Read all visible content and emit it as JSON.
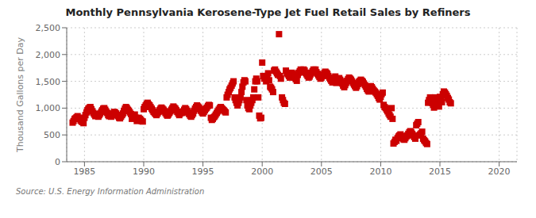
{
  "chart_data": {
    "type": "scatter",
    "title": "Monthly Pennsylvania Kerosene-Type Jet Fuel Retail Sales by Refiners",
    "ylabel": "Thousand Gallons per Day",
    "annotation": "Source: U.S. Energy Information Administration",
    "color": "#cc0000",
    "marker": "square",
    "grid": true,
    "xlim": [
      1983.5,
      2021.5
    ],
    "ylim": [
      0,
      2500
    ],
    "xticks": [
      1985,
      1990,
      1995,
      2000,
      2005,
      2010,
      2015,
      2020
    ],
    "yticks": [
      0,
      500,
      {
        "value": 1000,
        "label": "1,000"
      },
      {
        "value": 1500,
        "label": "1,500"
      },
      {
        "value": 2000,
        "label": "2,000"
      },
      {
        "value": 2500,
        "label": "2,500"
      }
    ],
    "x": [
      1984.0,
      1984.08,
      1984.17,
      1984.25,
      1984.33,
      1984.42,
      1984.5,
      1984.58,
      1984.67,
      1984.75,
      1984.83,
      1984.92,
      1985.0,
      1985.08,
      1985.17,
      1985.25,
      1985.33,
      1985.42,
      1985.5,
      1985.58,
      1985.67,
      1985.75,
      1985.83,
      1985.92,
      1986.0,
      1986.08,
      1986.17,
      1986.25,
      1986.33,
      1986.42,
      1986.5,
      1986.58,
      1986.67,
      1986.75,
      1986.83,
      1986.92,
      1987.0,
      1987.08,
      1987.17,
      1987.25,
      1987.33,
      1987.42,
      1987.5,
      1987.58,
      1987.67,
      1987.75,
      1987.83,
      1987.92,
      1988.0,
      1988.08,
      1988.17,
      1988.25,
      1988.33,
      1988.42,
      1988.5,
      1988.58,
      1988.67,
      1988.75,
      1988.83,
      1988.92,
      1989.0,
      1989.08,
      1989.17,
      1989.25,
      1989.33,
      1989.42,
      1989.5,
      1989.58,
      1989.67,
      1989.75,
      1989.83,
      1989.92,
      1990.0,
      1990.08,
      1990.17,
      1990.25,
      1990.33,
      1990.42,
      1990.5,
      1990.58,
      1990.67,
      1990.75,
      1990.83,
      1990.92,
      1991.0,
      1991.08,
      1991.17,
      1991.25,
      1991.33,
      1991.42,
      1991.5,
      1991.58,
      1991.67,
      1991.75,
      1991.83,
      1991.92,
      1992.0,
      1992.08,
      1992.17,
      1992.25,
      1992.33,
      1992.42,
      1992.5,
      1992.58,
      1992.67,
      1992.75,
      1992.83,
      1992.92,
      1993.0,
      1993.08,
      1993.17,
      1993.25,
      1993.33,
      1993.42,
      1993.5,
      1993.58,
      1993.67,
      1993.75,
      1993.83,
      1993.92,
      1994.0,
      1994.08,
      1994.17,
      1994.25,
      1994.33,
      1994.42,
      1994.5,
      1994.58,
      1994.67,
      1994.75,
      1994.83,
      1994.92,
      1995.0,
      1995.08,
      1995.17,
      1995.25,
      1995.33,
      1995.42,
      1995.5,
      1995.58,
      1995.67,
      1995.75,
      1995.83,
      1995.92,
      1996.0,
      1996.08,
      1996.17,
      1996.25,
      1996.33,
      1996.42,
      1996.5,
      1996.58,
      1996.67,
      1996.75,
      1996.83,
      1996.92,
      1997.0,
      1997.08,
      1997.17,
      1997.25,
      1997.33,
      1997.42,
      1997.5,
      1997.58,
      1997.67,
      1997.75,
      1997.83,
      1997.92,
      1998.0,
      1998.08,
      1998.17,
      1998.25,
      1998.33,
      1998.42,
      1998.5,
      1998.58,
      1998.67,
      1998.75,
      1998.83,
      1998.92,
      1999.0,
      1999.08,
      1999.17,
      1999.25,
      1999.33,
      1999.42,
      1999.5,
      1999.58,
      1999.67,
      1999.75,
      1999.83,
      1999.92,
      2000.0,
      2000.08,
      2000.17,
      2000.25,
      2000.33,
      2000.42,
      2000.5,
      2000.58,
      2000.67,
      2000.75,
      2000.83,
      2000.92,
      2001.0,
      2001.08,
      2001.17,
      2001.25,
      2001.33,
      2001.42,
      2001.5,
      2001.58,
      2001.67,
      2001.75,
      2001.83,
      2001.92,
      2002.0,
      2002.08,
      2002.17,
      2002.25,
      2002.33,
      2002.42,
      2002.5,
      2002.58,
      2002.67,
      2002.75,
      2002.83,
      2002.92,
      2003.0,
      2003.08,
      2003.17,
      2003.25,
      2003.33,
      2003.42,
      2003.5,
      2003.58,
      2003.67,
      2003.75,
      2003.83,
      2003.92,
      2004.0,
      2004.08,
      2004.17,
      2004.25,
      2004.33,
      2004.42,
      2004.5,
      2004.58,
      2004.67,
      2004.75,
      2004.83,
      2004.92,
      2005.0,
      2005.08,
      2005.17,
      2005.25,
      2005.33,
      2005.42,
      2005.5,
      2005.58,
      2005.67,
      2005.75,
      2005.83,
      2005.92,
      2006.0,
      2006.08,
      2006.17,
      2006.25,
      2006.33,
      2006.42,
      2006.5,
      2006.58,
      2006.67,
      2006.75,
      2006.83,
      2006.92,
      2007.0,
      2007.08,
      2007.17,
      2007.25,
      2007.33,
      2007.42,
      2007.5,
      2007.58,
      2007.67,
      2007.75,
      2007.83,
      2007.92,
      2008.0,
      2008.08,
      2008.17,
      2008.25,
      2008.33,
      2008.42,
      2008.5,
      2008.58,
      2008.67,
      2008.75,
      2008.83,
      2008.92,
      2009.0,
      2009.08,
      2009.17,
      2009.25,
      2009.33,
      2009.42,
      2009.5,
      2009.58,
      2009.67,
      2009.75,
      2009.83,
      2009.92,
      2010.0,
      2010.08,
      2010.17,
      2010.25,
      2010.33,
      2010.42,
      2010.5,
      2010.58,
      2010.67,
      2010.75,
      2010.83,
      2010.92,
      2011.0,
      2011.08,
      2011.17,
      2011.25,
      2011.33,
      2011.42,
      2011.5,
      2011.58,
      2011.67,
      2011.75,
      2011.83,
      2011.92,
      2012.0,
      2012.08,
      2012.17,
      2012.25,
      2012.33,
      2012.42,
      2012.5,
      2012.58,
      2012.67,
      2012.75,
      2012.83,
      2012.92,
      2013.0,
      2013.08,
      2013.17,
      2013.25,
      2013.33,
      2013.42,
      2013.5,
      2013.58,
      2013.67,
      2013.75,
      2013.83,
      2013.92,
      2014.0,
      2014.08,
      2014.17,
      2014.25,
      2014.33,
      2014.42,
      2014.5,
      2014.58,
      2014.67,
      2014.75,
      2014.83,
      2014.92,
      2015.0,
      2015.08,
      2015.17,
      2015.25,
      2015.33,
      2015.42,
      2015.5,
      2015.58,
      2015.67,
      2015.75,
      2015.83,
      2015.92
    ],
    "values": [
      730,
      760,
      800,
      810,
      830,
      850,
      820,
      800,
      770,
      750,
      740,
      720,
      820,
      870,
      920,
      960,
      990,
      1010,
      1020,
      980,
      940,
      910,
      880,
      850,
      890,
      860,
      840,
      870,
      900,
      930,
      960,
      990,
      1000,
      970,
      940,
      910,
      870,
      850,
      880,
      840,
      870,
      900,
      930,
      920,
      900,
      870,
      850,
      820,
      810,
      840,
      870,
      900,
      950,
      990,
      1020,
      1000,
      970,
      950,
      920,
      890,
      800,
      820,
      850,
      880,
      820,
      760,
      790,
      820,
      800,
      780,
      760,
      750,
      980,
      1020,
      1050,
      1080,
      1100,
      1070,
      1050,
      1020,
      990,
      960,
      930,
      910,
      890,
      870,
      900,
      930,
      960,
      990,
      1010,
      990,
      970,
      940,
      910,
      880,
      860,
      880,
      910,
      940,
      970,
      1000,
      1030,
      1010,
      990,
      960,
      930,
      900,
      870,
      900,
      930,
      910,
      940,
      970,
      1000,
      980,
      950,
      920,
      890,
      860,
      840,
      870,
      900,
      950,
      990,
      1020,
      1050,
      1030,
      1010,
      980,
      950,
      920,
      900,
      930,
      960,
      990,
      1010,
      1040,
      1060,
      1050,
      820,
      780,
      800,
      830,
      850,
      880,
      910,
      940,
      970,
      1000,
      1020,
      1000,
      980,
      960,
      940,
      920,
      1200,
      1250,
      1300,
      1350,
      1380,
      1420,
      1460,
      1500,
      1200,
      1150,
      1100,
      1050,
      1100,
      1150,
      1200,
      1300,
      1400,
      1480,
      1520,
      1500,
      1150,
      1050,
      1000,
      980,
      1050,
      1100,
      1150,
      1200,
      1350,
      1500,
      1550,
      1500,
      1200,
      860,
      810,
      820,
      1850,
      1600,
      1550,
      1580,
      1500,
      1600,
      1650,
      1520,
      1400,
      1380,
      1350,
      1300,
      1700,
      1720,
      1680,
      1650,
      1620,
      2380,
      1600,
      1550,
      1200,
      1150,
      1100,
      1080,
      1700,
      1650,
      1630,
      1600,
      1570,
      1620,
      1660,
      1640,
      1600,
      1570,
      1540,
      1510,
      1620,
      1660,
      1690,
      1720,
      1670,
      1700,
      1720,
      1700,
      1660,
      1630,
      1600,
      1570,
      1590,
      1630,
      1660,
      1690,
      1720,
      1700,
      1720,
      1670,
      1640,
      1610,
      1580,
      1550,
      1570,
      1600,
      1630,
      1660,
      1680,
      1660,
      1640,
      1600,
      1570,
      1540,
      1510,
      1480,
      1510,
      1550,
      1590,
      1470,
      1500,
      1520,
      1560,
      1530,
      1500,
      1460,
      1420,
      1390,
      1430,
      1470,
      1510,
      1540,
      1570,
      1550,
      1530,
      1500,
      1470,
      1440,
      1410,
      1380,
      1410,
      1450,
      1490,
      1510,
      1530,
      1510,
      1490,
      1460,
      1430,
      1400,
      1360,
      1330,
      1310,
      1360,
      1410,
      1390,
      1360,
      1330,
      1310,
      1290,
      1260,
      1230,
      1190,
      1160,
      1210,
      1260,
      1290,
      1060,
      1020,
      1000,
      970,
      940,
      900,
      870,
      840,
      1000,
      800,
      340,
      370,
      410,
      390,
      440,
      470,
      490,
      510,
      480,
      450,
      420,
      410,
      440,
      470,
      490,
      520,
      550,
      570,
      550,
      520,
      490,
      460,
      430,
      680,
      710,
      740,
      490,
      510,
      530,
      560,
      430,
      400,
      380,
      350,
      330,
      1100,
      1150,
      1200,
      1150,
      1100,
      1060,
      1010,
      1200,
      1160,
      1110,
      1060,
      1030,
      1210,
      1160,
      1110,
      1260,
      1310,
      1290,
      1260,
      1230,
      1190,
      1160,
      1110,
      1090
    ]
  }
}
